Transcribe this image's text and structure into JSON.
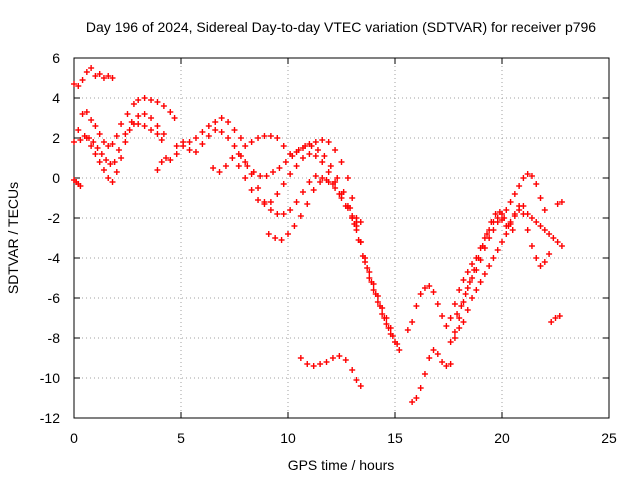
{
  "chart_data": {
    "type": "scatter",
    "title": "Day 196 of 2024, Sidereal Day-to-day VTEC variation (SDTVAR) for receiver p796",
    "xlabel": "GPS time / hours",
    "ylabel": "SDTVAR / TECUs",
    "xlim": [
      0,
      25
    ],
    "ylim": [
      -12,
      6
    ],
    "xticks": [
      "0",
      "5",
      "10",
      "15",
      "20",
      "25"
    ],
    "yticks": [
      "6",
      "4",
      "2",
      "0",
      "-2",
      "-4",
      "-6",
      "-8",
      "-10",
      "-12"
    ],
    "grid": true,
    "marker": "+",
    "color": "#ff0000",
    "series": [
      {
        "x": [
          0.0,
          0.1,
          0.2,
          0.3
        ],
        "y": [
          -0.1,
          -0.2,
          -0.3,
          -0.4
        ]
      },
      {
        "x": [
          0.0,
          0.2,
          0.4,
          0.6,
          0.8,
          1.0,
          1.2,
          1.4,
          1.6,
          1.8
        ],
        "y": [
          4.7,
          4.6,
          4.9,
          5.3,
          5.5,
          5.1,
          5.2,
          5.0,
          5.1,
          5.0
        ]
      },
      {
        "x": [
          0.0,
          0.2,
          0.4,
          0.6,
          0.8,
          1.0,
          1.2,
          1.4,
          1.6,
          1.8,
          2.0,
          2.2,
          2.5,
          2.8,
          3.0,
          3.3,
          3.6,
          3.9,
          4.2,
          4.5,
          4.7
        ],
        "y": [
          1.8,
          2.4,
          3.2,
          3.3,
          2.9,
          2.6,
          2.2,
          1.8,
          1.6,
          1.7,
          2.1,
          2.7,
          3.2,
          3.7,
          3.9,
          4.0,
          3.9,
          3.8,
          3.6,
          3.3,
          3.0
        ]
      },
      {
        "x": [
          0.3,
          0.5,
          0.7,
          0.9,
          1.1,
          1.3,
          1.5,
          1.7,
          1.9,
          2.1,
          2.4,
          2.7,
          3.0,
          3.3,
          3.6,
          3.9,
          4.2
        ],
        "y": [
          1.9,
          2.1,
          2.0,
          1.8,
          1.5,
          1.2,
          0.9,
          0.7,
          0.8,
          1.4,
          2.2,
          2.8,
          3.1,
          3.2,
          3.0,
          2.6,
          2.2
        ]
      },
      {
        "x": [
          0.6,
          0.8,
          1.0,
          1.2,
          1.4,
          1.6,
          1.8,
          2.0,
          2.2,
          2.4,
          2.6,
          2.8,
          3.0,
          3.3,
          3.6,
          3.9,
          4.1
        ],
        "y": [
          2.0,
          1.6,
          1.2,
          0.8,
          0.4,
          0.0,
          -0.2,
          0.3,
          1.0,
          1.8,
          2.4,
          2.7,
          2.7,
          2.6,
          2.4,
          2.2,
          1.9
        ]
      },
      {
        "x": [
          3.9,
          4.1,
          4.3,
          4.5,
          4.8,
          5.1,
          5.4,
          5.7,
          6.0,
          6.3,
          6.6,
          6.9,
          7.2,
          7.5,
          7.8,
          8.0,
          8.3,
          8.6,
          8.9,
          9.2,
          9.5,
          9.8,
          10.1,
          10.4,
          10.7,
          11.0,
          11.3,
          11.6,
          11.9,
          12.2,
          12.5,
          12.8,
          13.0,
          13.2,
          13.4,
          13.6,
          13.8,
          14.0,
          14.2,
          14.4,
          14.6,
          14.8,
          15.0,
          15.2
        ],
        "y": [
          0.4,
          0.8,
          1.0,
          0.9,
          1.2,
          1.6,
          1.8,
          2.0,
          2.3,
          2.6,
          2.8,
          3.0,
          2.8,
          2.4,
          2.0,
          1.6,
          1.8,
          2.0,
          2.1,
          2.1,
          2.0,
          1.6,
          1.2,
          1.3,
          1.5,
          1.7,
          1.8,
          1.9,
          1.8,
          1.4,
          0.8,
          0.0,
          -1.0,
          -2.0,
          -3.2,
          -4.2,
          -5.0,
          -5.6,
          -6.2,
          -6.8,
          -7.3,
          -7.8,
          -8.2,
          -8.6
        ]
      },
      {
        "x": [
          4.8,
          5.1,
          5.4,
          5.7,
          6.0,
          6.3,
          6.6,
          6.9,
          7.2,
          7.5,
          7.8,
          8.1,
          8.4,
          8.7,
          9.0,
          9.3,
          9.6,
          9.9,
          10.2,
          10.5,
          10.8,
          11.1,
          11.4,
          11.7,
          12.0,
          12.3,
          12.6,
          12.9,
          13.1,
          13.3,
          13.5,
          13.7,
          13.9,
          14.1,
          14.3,
          14.5,
          14.7,
          14.9,
          15.1
        ],
        "y": [
          1.6,
          1.8,
          1.4,
          1.3,
          1.7,
          2.1,
          2.4,
          2.3,
          2.0,
          1.6,
          1.1,
          0.6,
          0.3,
          0.1,
          0.1,
          0.3,
          0.5,
          0.8,
          1.1,
          1.4,
          1.6,
          1.6,
          1.4,
          1.1,
          0.6,
          0.0,
          -0.7,
          -1.5,
          -2.3,
          -3.1,
          -3.9,
          -4.5,
          -5.2,
          -5.8,
          -6.4,
          -7.0,
          -7.5,
          -7.9,
          -8.3
        ]
      },
      {
        "x": [
          6.5,
          6.8,
          7.1,
          7.4,
          7.7,
          8.0,
          8.3,
          8.6,
          8.9,
          9.2,
          9.5,
          9.8,
          10.1,
          10.4,
          10.7,
          11.0,
          11.3,
          11.6,
          11.9,
          12.2,
          12.5,
          12.8,
          13.0,
          13.2,
          13.4,
          13.6,
          13.8,
          14.0,
          14.2,
          14.4,
          14.6,
          14.8
        ],
        "y": [
          0.5,
          0.3,
          0.6,
          1.0,
          0.6,
          0.0,
          -0.6,
          -1.1,
          -1.3,
          -1.2,
          -0.8,
          -0.3,
          0.2,
          0.6,
          1.0,
          1.2,
          1.1,
          0.8,
          0.3,
          -0.2,
          -0.8,
          -1.4,
          -2.0,
          -2.6,
          -3.2,
          -4.0,
          -4.7,
          -5.3,
          -5.9,
          -6.5,
          -7.0,
          -7.5
        ]
      },
      {
        "x": [
          7.7,
          8.0,
          8.3,
          8.6,
          8.9,
          9.2,
          9.5,
          9.8,
          10.1,
          10.4,
          10.7,
          11.0,
          11.3,
          11.6,
          11.9,
          12.2,
          12.5,
          12.8,
          13.0,
          13.2,
          13.4
        ],
        "y": [
          1.2,
          0.8,
          0.2,
          -0.5,
          -1.2,
          -1.6,
          -1.8,
          -1.8,
          -1.6,
          -1.2,
          -0.7,
          -0.2,
          0.1,
          0.0,
          -0.2,
          -0.5,
          -1.0,
          -1.5,
          -1.9,
          -2.2,
          -2.2
        ]
      },
      {
        "x": [
          9.1,
          9.4,
          9.7,
          10.0,
          10.3,
          10.6,
          10.9,
          11.2,
          11.5,
          11.8,
          12.1,
          12.4,
          12.7,
          13.0,
          13.2
        ],
        "y": [
          -2.8,
          -3.0,
          -3.1,
          -2.8,
          -2.4,
          -1.9,
          -1.3,
          -0.6,
          -0.2,
          -0.1,
          -0.3,
          -0.8,
          -1.4,
          -2.0,
          -2.4
        ]
      },
      {
        "x": [
          10.6,
          10.9,
          11.2,
          11.5,
          11.8,
          12.1,
          12.4,
          12.7,
          13.0,
          13.2,
          13.4
        ],
        "y": [
          -9.0,
          -9.3,
          -9.4,
          -9.3,
          -9.2,
          -9.0,
          -8.9,
          -9.1,
          -9.6,
          -10.1,
          -10.4
        ]
      },
      {
        "x": [
          15.8,
          16.0,
          16.2,
          16.4,
          16.6,
          16.8,
          17.0,
          17.2,
          17.4,
          17.6
        ],
        "y": [
          -11.2,
          -11.0,
          -10.5,
          -9.8,
          -9.0,
          -8.6,
          -8.8,
          -9.2,
          -9.4,
          -9.3
        ]
      },
      {
        "x": [
          15.6,
          15.8,
          16.0,
          16.2,
          16.4,
          16.6,
          16.8,
          17.0,
          17.2,
          17.4,
          17.6,
          17.8,
          18.0,
          18.2,
          18.4,
          18.6,
          18.8,
          19.0,
          19.2,
          19.4,
          19.6,
          19.8,
          20.0,
          20.2,
          20.4,
          20.6,
          20.8,
          21.0,
          21.2,
          21.4,
          21.6,
          21.8,
          22.0,
          22.2,
          22.4,
          22.6,
          22.8
        ],
        "y": [
          -7.6,
          -7.2,
          -6.4,
          -5.8,
          -5.5,
          -5.4,
          -5.7,
          -6.3,
          -6.9,
          -7.4,
          -7.0,
          -6.3,
          -5.6,
          -5.1,
          -4.7,
          -4.3,
          -4.0,
          -3.5,
          -3.0,
          -2.6,
          -2.2,
          -2.0,
          -2.1,
          -2.4,
          -2.2,
          -1.8,
          -1.4,
          -1.4,
          -1.8,
          -2.0,
          -2.2,
          -2.4,
          -2.6,
          -2.8,
          -3.0,
          -3.2,
          -3.4
        ]
      },
      {
        "x": [
          17.6,
          17.8,
          18.0,
          18.2,
          18.4,
          18.6,
          18.8,
          19.0,
          19.2,
          19.4,
          19.6,
          19.8,
          20.0,
          20.2,
          20.4,
          20.6,
          20.8,
          21.0,
          21.2,
          21.4,
          21.6,
          21.8,
          22.0
        ],
        "y": [
          -8.2,
          -7.7,
          -7.0,
          -6.2,
          -5.5,
          -5.0,
          -4.6,
          -4.1,
          -3.5,
          -3.0,
          -2.6,
          -2.2,
          -1.8,
          -1.6,
          -1.2,
          -0.8,
          -0.4,
          0.0,
          0.2,
          0.1,
          -0.3,
          -1.0,
          -1.6
        ]
      },
      {
        "x": [
          17.8,
          18.0,
          18.2,
          18.4,
          18.6,
          18.8,
          19.0,
          19.2,
          19.4,
          19.6,
          19.8,
          20.0,
          20.2,
          20.4,
          20.6,
          20.8,
          21.0,
          21.2,
          21.4,
          21.6,
          21.8,
          22.0,
          22.2
        ],
        "y": [
          -8.0,
          -7.5,
          -7.2,
          -6.6,
          -6.0,
          -5.6,
          -5.2,
          -4.8,
          -4.4,
          -4.0,
          -3.6,
          -3.2,
          -2.8,
          -2.3,
          -1.9,
          -1.6,
          -1.8,
          -2.6,
          -3.4,
          -4.0,
          -4.4,
          -4.2,
          -3.8
        ]
      },
      {
        "x": [
          17.9,
          18.1,
          18.3,
          18.5,
          18.7,
          18.9,
          19.1,
          19.3,
          19.5,
          19.7,
          19.9,
          20.1,
          20.3,
          20.5
        ],
        "y": [
          -6.8,
          -6.4,
          -5.8,
          -5.2,
          -4.6,
          -4.0,
          -3.4,
          -2.8,
          -2.2,
          -1.8,
          -1.7,
          -2.0,
          -2.4,
          -2.6
        ]
      },
      {
        "x": [
          22.6,
          22.8
        ],
        "y": [
          -1.3,
          -1.2
        ]
      },
      {
        "x": [
          22.3,
          22.5,
          22.7
        ],
        "y": [
          -7.2,
          -7.0,
          -6.9
        ]
      }
    ]
  }
}
